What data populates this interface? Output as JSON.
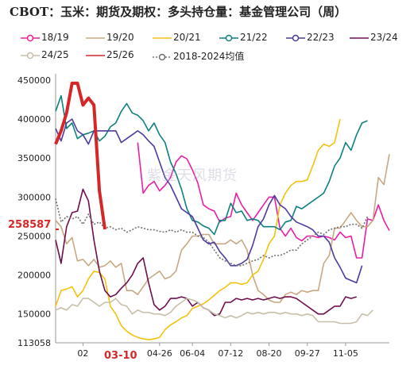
{
  "chart_data": {
    "type": "line",
    "title": "CBOT：玉米：期货及期权：多头持仓量：基金管理公司（周）",
    "xlabel": "",
    "ylabel": "",
    "ylim": [
      113058,
      450000
    ],
    "yticks": [
      450000,
      400000,
      350000,
      300000,
      250000,
      200000,
      150000,
      113058
    ],
    "xticks": [
      "02",
      "04-26",
      "06-04",
      "07-12",
      "08-20",
      "09-27",
      "11-05"
    ],
    "highlight": {
      "value_label": "258587",
      "date_label": "03-10"
    },
    "legend_position": "top",
    "series": [
      {
        "name": "18/19",
        "color": "#e91ea6",
        "marker": "circle",
        "values": [
          null,
          null,
          null,
          null,
          null,
          null,
          null,
          null,
          null,
          null,
          null,
          null,
          null,
          null,
          null,
          370000,
          305000,
          315000,
          320000,
          308000,
          315000,
          325000,
          345000,
          353000,
          349000,
          335000,
          318000,
          290000,
          285000,
          282000,
          268000,
          273000,
          275000,
          305000,
          290000,
          280000,
          270000,
          280000,
          290000,
          300000,
          300000,
          260000,
          250000,
          260000,
          248000,
          244000,
          250000,
          250000,
          248000,
          250000,
          248000,
          245000,
          255000,
          248000,
          250000,
          222000,
          222000,
          272000,
          270000,
          290000,
          270000,
          257000
        ]
      },
      {
        "name": "19/20",
        "color": "#c8a882",
        "marker": "none",
        "values": [
          270000,
          262000,
          240000,
          248000,
          218000,
          220000,
          212000,
          220000,
          210000,
          212000,
          218000,
          210000,
          215000,
          180000,
          180000,
          175000,
          185000,
          195000,
          200000,
          205000,
          195000,
          198000,
          205000,
          232000,
          240000,
          250000,
          250000,
          252000,
          252000,
          240000,
          240000,
          240000,
          245000,
          240000,
          245000,
          232000,
          200000,
          180000,
          175000,
          168000,
          165000,
          165000,
          175000,
          178000,
          175000,
          180000,
          178000,
          180000,
          180000,
          215000,
          225000,
          260000,
          260000,
          270000,
          280000,
          270000,
          262000,
          262000,
          270000,
          325000,
          316000,
          355000
        ]
      },
      {
        "name": "20/21",
        "color": "#f4c20d",
        "marker": "none",
        "values": [
          160000,
          180000,
          182000,
          185000,
          172000,
          180000,
          195000,
          205000,
          203000,
          195000,
          160000,
          150000,
          135000,
          128000,
          123000,
          120000,
          118000,
          117000,
          118000,
          120000,
          130000,
          136000,
          140000,
          145000,
          148000,
          157000,
          160000,
          163000,
          168000,
          174000,
          180000,
          184000,
          190000,
          190000,
          188000,
          190000,
          200000,
          205000,
          220000,
          240000,
          250000,
          290000,
          305000,
          315000,
          320000,
          320000,
          322000,
          340000,
          360000,
          368000,
          365000,
          370000,
          400000
        ]
      },
      {
        "name": "21/22",
        "color": "#0e8080",
        "marker": "circle",
        "values": [
          410000,
          430000,
          388000,
          395000,
          375000,
          380000,
          382000,
          385000,
          372000,
          378000,
          390000,
          395000,
          410000,
          420000,
          408000,
          405000,
          398000,
          385000,
          395000,
          380000,
          370000,
          345000,
          330000,
          310000,
          285000,
          270000,
          268000,
          263000,
          260000,
          252000,
          270000,
          270000,
          292000,
          280000,
          282000,
          270000,
          272000,
          270000,
          262000,
          262000,
          262000,
          258000,
          268000,
          270000,
          288000,
          285000,
          290000,
          295000,
          300000,
          305000,
          320000,
          340000,
          350000,
          370000,
          360000,
          380000,
          395000,
          398000
        ]
      },
      {
        "name": "22/23",
        "color": "#4e3a9e",
        "marker": "circle",
        "values": [
          388000,
          372000,
          395000,
          400000,
          385000,
          380000,
          368000,
          385000,
          385000,
          385000,
          385000,
          385000,
          370000,
          375000,
          380000,
          385000,
          380000,
          372000,
          365000,
          345000,
          325000,
          315000,
          300000,
          285000,
          280000,
          275000,
          260000,
          245000,
          240000,
          242000,
          230000,
          222000,
          212000,
          212000,
          215000,
          220000,
          238000,
          262000,
          272000,
          290000,
          302000,
          290000,
          285000,
          275000,
          268000,
          265000,
          262000,
          258000,
          250000,
          250000,
          242000,
          222000,
          210000,
          196000,
          193000,
          190000,
          212000
        ]
      },
      {
        "name": "23/24",
        "color": "#6e0e4d",
        "marker": "none",
        "values": [
          245000,
          215000,
          262000,
          280000,
          282000,
          310000,
          295000,
          245000,
          205000,
          180000,
          172000,
          175000,
          183000,
          190000,
          200000,
          215000,
          222000,
          190000,
          162000,
          155000,
          160000,
          170000,
          170000,
          172000,
          170000,
          160000,
          165000,
          158000,
          155000,
          148000,
          150000,
          165000,
          165000,
          170000,
          168000,
          170000,
          168000,
          170000,
          168000,
          170000,
          172000,
          170000,
          172000,
          172000,
          170000,
          165000,
          160000,
          155000,
          150000,
          150000,
          155000,
          160000,
          160000,
          172000,
          170000,
          172000
        ]
      },
      {
        "name": "24/25",
        "color": "#c8bfa8",
        "marker": "circle",
        "values": [
          155000,
          158000,
          155000,
          162000,
          160000,
          170000,
          170000,
          165000,
          160000,
          165000,
          165000,
          170000,
          162000,
          160000,
          150000,
          155000,
          152000,
          152000,
          150000,
          150000,
          148000,
          152000,
          160000,
          165000,
          170000,
          168000,
          165000,
          158000,
          155000,
          150000,
          148000,
          145000,
          148000,
          145000,
          148000,
          152000,
          150000,
          152000,
          150000,
          152000,
          152000,
          150000,
          152000,
          150000,
          150000,
          148000,
          150000,
          148000,
          140000,
          140000,
          140000,
          140000,
          138000,
          138000,
          138000,
          140000,
          150000,
          148000,
          155000
        ]
      },
      {
        "name": "25/26",
        "color": "#d62728",
        "marker": "none",
        "values": [
          368000,
          385000,
          408000,
          446000,
          446000,
          418000,
          427000,
          418000,
          308000,
          258587
        ]
      },
      {
        "name": "2018-2024均值",
        "color": "#707070",
        "marker": "circle",
        "dashed": true,
        "values": [
          298000,
          268000,
          275000,
          272000,
          275000,
          265000,
          278000,
          265000,
          268000,
          260000,
          262000,
          258000,
          260000,
          255000,
          258000,
          262000,
          260000,
          258000,
          258000,
          256000,
          255000,
          258000,
          255000,
          258000,
          255000,
          255000,
          250000,
          248000,
          242000,
          232000,
          222000,
          218000,
          215000,
          212000,
          212000,
          215000,
          218000,
          220000,
          225000,
          222000,
          225000,
          225000,
          228000,
          232000,
          232000,
          240000,
          245000,
          250000,
          255000,
          252000,
          258000,
          260000,
          262000,
          262000,
          265000,
          265000,
          260000,
          275000
        ]
      }
    ]
  },
  "watermark": "紫金天风期货"
}
